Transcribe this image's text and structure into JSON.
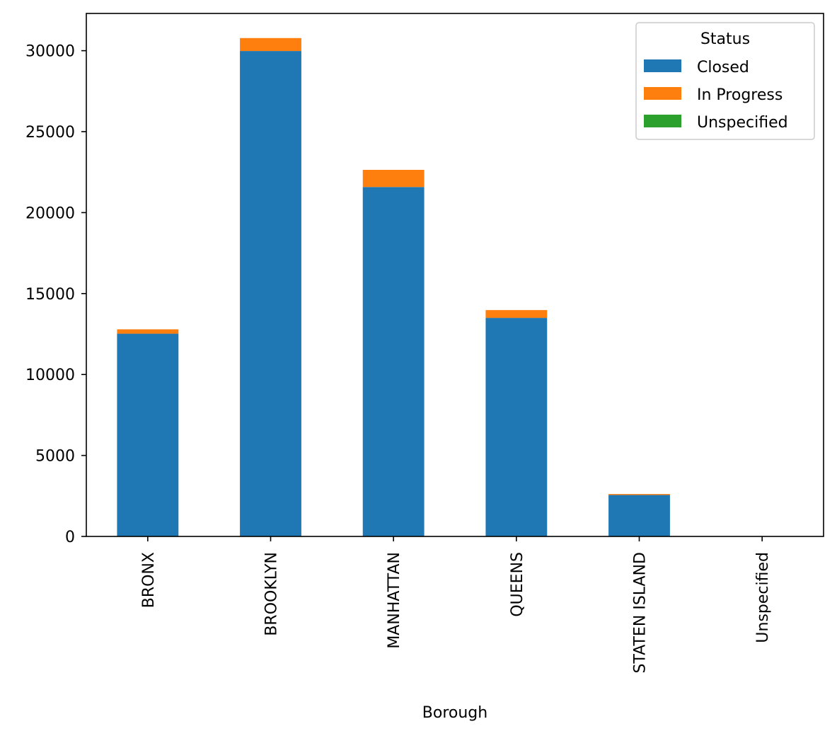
{
  "chart_data": {
    "type": "bar",
    "stacked": true,
    "title": "",
    "xlabel": "Borough",
    "ylabel": "",
    "ylim": [
      0,
      32300
    ],
    "yticks": [
      0,
      5000,
      10000,
      15000,
      20000,
      25000,
      30000
    ],
    "ytick_labels": [
      "0",
      "5000",
      "10000",
      "15000",
      "20000",
      "25000",
      "30000"
    ],
    "categories": [
      "BRONX",
      "BROOKLYN",
      "MANHATTAN",
      "QUEENS",
      "STATEN ISLAND",
      "Unspecified"
    ],
    "series": [
      {
        "name": "Closed",
        "color": "#1f77b4",
        "values": [
          12520,
          29980,
          21580,
          13500,
          2560,
          0
        ]
      },
      {
        "name": "In Progress",
        "color": "#ff7f0e",
        "values": [
          270,
          800,
          1060,
          480,
          60,
          0
        ]
      },
      {
        "name": "Unspecified",
        "color": "#2ca02c",
        "values": [
          0,
          0,
          0,
          0,
          0,
          0
        ]
      }
    ],
    "legend": {
      "title": "Status",
      "position": "top-right"
    },
    "grid": false
  }
}
